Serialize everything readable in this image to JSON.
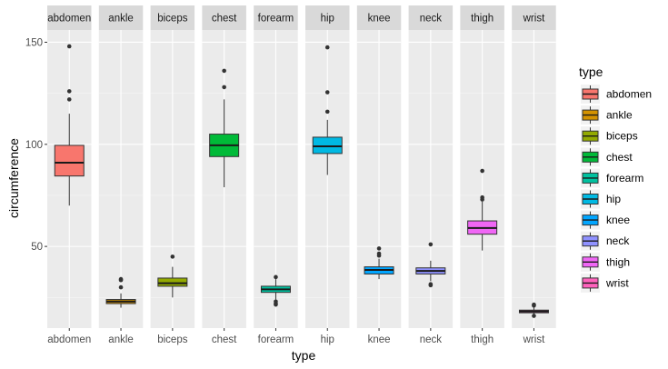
{
  "chart_data": {
    "type": "boxplot",
    "facet_by": "type",
    "xlabel": "type",
    "ylabel": "circumference",
    "ylim": [
      10,
      156
    ],
    "y_ticks": [
      50,
      100,
      150
    ],
    "grid": true,
    "legend": {
      "title": "type",
      "position": "right"
    },
    "series": [
      {
        "name": "abdomen",
        "color": "#F8766D",
        "whisker_low": 70,
        "q1": 84.5,
        "median": 91,
        "q3": 99.5,
        "whisker_high": 115,
        "outliers": [
          122,
          126,
          148
        ]
      },
      {
        "name": "ankle",
        "color": "#D39200",
        "whisker_low": 20,
        "q1": 22,
        "median": 23,
        "q3": 24,
        "whisker_high": 27,
        "outliers": [
          30,
          33.5,
          34
        ]
      },
      {
        "name": "biceps",
        "color": "#93AA00",
        "whisker_low": 25,
        "q1": 30.5,
        "median": 32,
        "q3": 34.5,
        "whisker_high": 40,
        "outliers": [
          45
        ]
      },
      {
        "name": "chest",
        "color": "#00BA38",
        "whisker_low": 79,
        "q1": 94,
        "median": 99.5,
        "q3": 105,
        "whisker_high": 122,
        "outliers": [
          128,
          136
        ]
      },
      {
        "name": "forearm",
        "color": "#00C19F",
        "whisker_low": 24,
        "q1": 27.5,
        "median": 29,
        "q3": 30.5,
        "whisker_high": 34,
        "outliers": [
          35,
          23,
          22,
          21.5
        ]
      },
      {
        "name": "hip",
        "color": "#00B9E3",
        "whisker_low": 85,
        "q1": 95.5,
        "median": 99,
        "q3": 103.5,
        "whisker_high": 112,
        "outliers": [
          116,
          125.5,
          147.5
        ]
      },
      {
        "name": "knee",
        "color": "#00A5FF",
        "whisker_low": 34,
        "q1": 36.5,
        "median": 38.5,
        "q3": 40,
        "whisker_high": 44,
        "outliers": [
          45.5,
          46.5,
          49
        ]
      },
      {
        "name": "neck",
        "color": "#8F91FF",
        "whisker_low": 33,
        "q1": 36.5,
        "median": 38,
        "q3": 39.5,
        "whisker_high": 43,
        "outliers": [
          51,
          31.5,
          31
        ]
      },
      {
        "name": "thigh",
        "color": "#F066F5",
        "whisker_low": 48,
        "q1": 56,
        "median": 59,
        "q3": 62.5,
        "whisker_high": 72,
        "outliers": [
          73,
          74,
          87
        ]
      },
      {
        "name": "wrist",
        "color": "#FF62BC",
        "whisker_low": 16.5,
        "q1": 17.5,
        "median": 18.2,
        "q3": 18.8,
        "whisker_high": 20,
        "outliers": [
          21,
          21.5,
          16
        ]
      }
    ]
  }
}
